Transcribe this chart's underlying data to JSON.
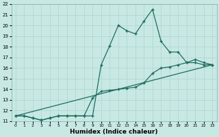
{
  "xlabel": "Humidex (Indice chaleur)",
  "xlim": [
    -0.5,
    23.5
  ],
  "ylim": [
    11,
    22
  ],
  "xticks": [
    0,
    1,
    2,
    3,
    4,
    5,
    6,
    7,
    8,
    9,
    10,
    11,
    12,
    13,
    14,
    15,
    16,
    17,
    18,
    19,
    20,
    21,
    22,
    23
  ],
  "yticks": [
    11,
    12,
    13,
    14,
    15,
    16,
    17,
    18,
    19,
    20,
    21,
    22
  ],
  "bg_color": "#c8e8e4",
  "grid_color": "#b0d8d2",
  "line_color": "#1e6b5e",
  "line1_x": [
    0,
    1,
    2,
    3,
    4,
    5,
    6,
    7,
    8,
    9,
    10,
    11,
    12,
    13,
    14,
    15,
    16,
    17,
    18,
    19,
    20,
    21,
    22,
    23
  ],
  "line1_y": [
    11.5,
    11.5,
    11.3,
    11.1,
    11.3,
    11.5,
    11.5,
    11.5,
    11.5,
    11.5,
    16.3,
    18.1,
    20.0,
    19.5,
    19.2,
    20.4,
    21.5,
    18.5,
    17.5,
    17.5,
    16.5,
    16.5,
    16.3,
    16.3
  ],
  "line2_x": [
    0,
    1,
    2,
    3,
    4,
    5,
    6,
    7,
    8,
    9,
    10,
    11,
    12,
    13,
    14,
    15,
    16,
    17,
    18,
    19,
    20,
    21,
    22,
    23
  ],
  "line2_y": [
    11.5,
    11.5,
    11.3,
    11.1,
    11.3,
    11.5,
    11.5,
    11.5,
    11.5,
    13.2,
    13.8,
    13.9,
    14.0,
    14.1,
    14.2,
    14.6,
    15.5,
    16.0,
    16.1,
    16.3,
    16.5,
    16.8,
    16.5,
    16.3
  ],
  "line3_x": [
    0,
    23
  ],
  "line3_y": [
    11.5,
    16.3
  ]
}
